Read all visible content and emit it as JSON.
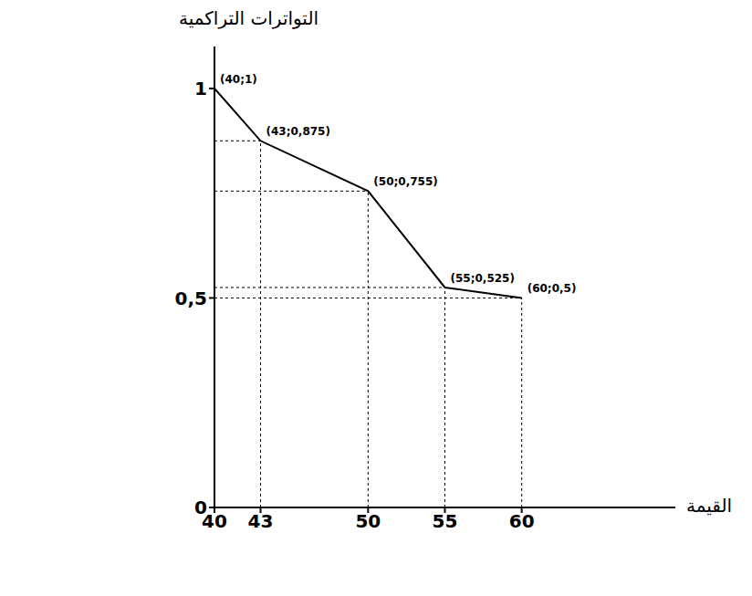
{
  "chart_data": {
    "type": "line",
    "x_label": "القيمة",
    "y_label": "التواترات التراكمية",
    "x": [
      40,
      43,
      50,
      55,
      60
    ],
    "values": [
      1,
      0.875,
      0.755,
      0.525,
      0.5
    ],
    "value_labels": [
      "(40;1)",
      "(43;0,875)",
      "(50;0,755)",
      "(55;0,525)",
      "(60;0,5)"
    ],
    "color": "#000000",
    "xlim": [
      40,
      70
    ],
    "xticks": [
      40,
      43,
      50,
      55,
      60
    ],
    "ylim": [
      0,
      1.1
    ],
    "yticks": [
      0,
      {
        "value": 0.5,
        "label": "0,5"
      },
      1
    ],
    "grid": false,
    "data_labels": true
  }
}
